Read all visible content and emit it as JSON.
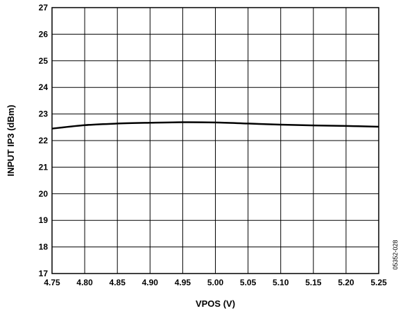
{
  "chart_data": {
    "type": "line",
    "xlabel": "VPOS (V)",
    "ylabel": "INPUT IP3 (dBm)",
    "xlim": [
      4.75,
      5.25
    ],
    "ylim": [
      17,
      27
    ],
    "x_ticks": [
      "4.75",
      "4.80",
      "4.85",
      "4.90",
      "4.95",
      "5.00",
      "5.05",
      "5.10",
      "5.15",
      "5.20",
      "5.25"
    ],
    "y_ticks": [
      "17",
      "18",
      "19",
      "20",
      "21",
      "22",
      "23",
      "24",
      "25",
      "26",
      "27"
    ],
    "grid": true,
    "series": [
      {
        "x": [
          4.75,
          4.8,
          4.85,
          4.9,
          4.95,
          5.0,
          5.05,
          5.1,
          5.15,
          5.2,
          5.25
        ],
        "y": [
          22.45,
          22.58,
          22.64,
          22.67,
          22.69,
          22.68,
          22.64,
          22.6,
          22.57,
          22.55,
          22.52
        ],
        "color": "#000000"
      }
    ],
    "figure_id": "05352-028"
  }
}
